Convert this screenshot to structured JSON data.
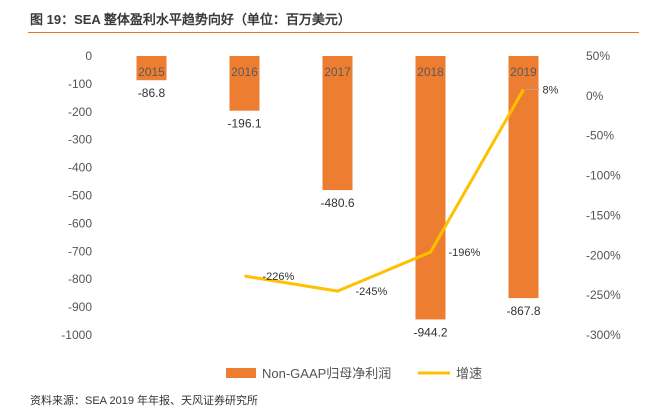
{
  "header": {
    "title": "图 19：SEA 整体盈利水平趋势向好（单位：百万美元）"
  },
  "footer": {
    "source": "资料来源：SEA 2019 年年报、天风证券研究所"
  },
  "colors": {
    "bar": "#ED7D31",
    "line": "#FFC000",
    "title_rule": "#E07A28"
  },
  "chart_data": {
    "type": "bar",
    "categories": [
      "2015",
      "2016",
      "2017",
      "2018",
      "2019"
    ],
    "series": [
      {
        "name": "Non-GAAP归母净利润",
        "type": "bar",
        "axis": "left",
        "values": [
          -86.8,
          -196.1,
          -480.6,
          -944.2,
          -867.8
        ],
        "labels": [
          "-86.8",
          "-196.1",
          "-480.6",
          "-944.2",
          "-867.8"
        ]
      },
      {
        "name": "增速",
        "type": "line",
        "axis": "right",
        "values": [
          null,
          -226,
          -245,
          -196,
          8
        ],
        "labels": [
          "",
          "-226%",
          "-245%",
          "-196%",
          "8%"
        ]
      }
    ],
    "y_left": {
      "ylim": [
        -1000,
        0
      ],
      "ticks": [
        "0",
        "-100",
        "-200",
        "-300",
        "-400",
        "-500",
        "-600",
        "-700",
        "-800",
        "-900",
        "-1000"
      ]
    },
    "y_right": {
      "ylim": [
        -300,
        50
      ],
      "ticks": [
        "50%",
        "0%",
        "-50%",
        "-100%",
        "-150%",
        "-200%",
        "-250%",
        "-300%"
      ]
    },
    "grid": false,
    "legend_position": "bottom"
  }
}
